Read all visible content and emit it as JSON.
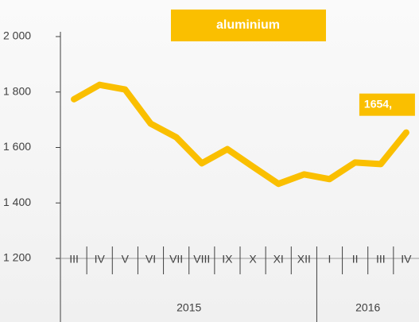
{
  "chart_data": {
    "type": "line",
    "title": "aluminium",
    "category_groups": [
      {
        "label": "2015",
        "categories": [
          "III",
          "IV",
          "V",
          "VI",
          "VII",
          "VIII",
          "IX",
          "X",
          "XI",
          "XII"
        ]
      },
      {
        "label": "2016",
        "categories": [
          "I",
          "II",
          "III",
          "IV"
        ]
      }
    ],
    "series": [
      {
        "color": "#fabf00",
        "values": [
          1774,
          1826,
          1809,
          1686,
          1637,
          1543,
          1594,
          1531,
          1469,
          1503,
          1486,
          1546,
          1540,
          1654
        ],
        "value_labels": [
          null,
          null,
          null,
          null,
          null,
          null,
          null,
          null,
          null,
          null,
          null,
          null,
          null,
          "1654,"
        ]
      }
    ],
    "ylim": [
      1200,
      2000
    ],
    "yticks": [
      {
        "value": 1200,
        "label": "1 200"
      },
      {
        "value": 1400,
        "label": "1 400"
      },
      {
        "value": 1600,
        "label": "1 600"
      },
      {
        "value": 1800,
        "label": "1 800"
      },
      {
        "value": 2000,
        "label": "2 000"
      }
    ]
  }
}
